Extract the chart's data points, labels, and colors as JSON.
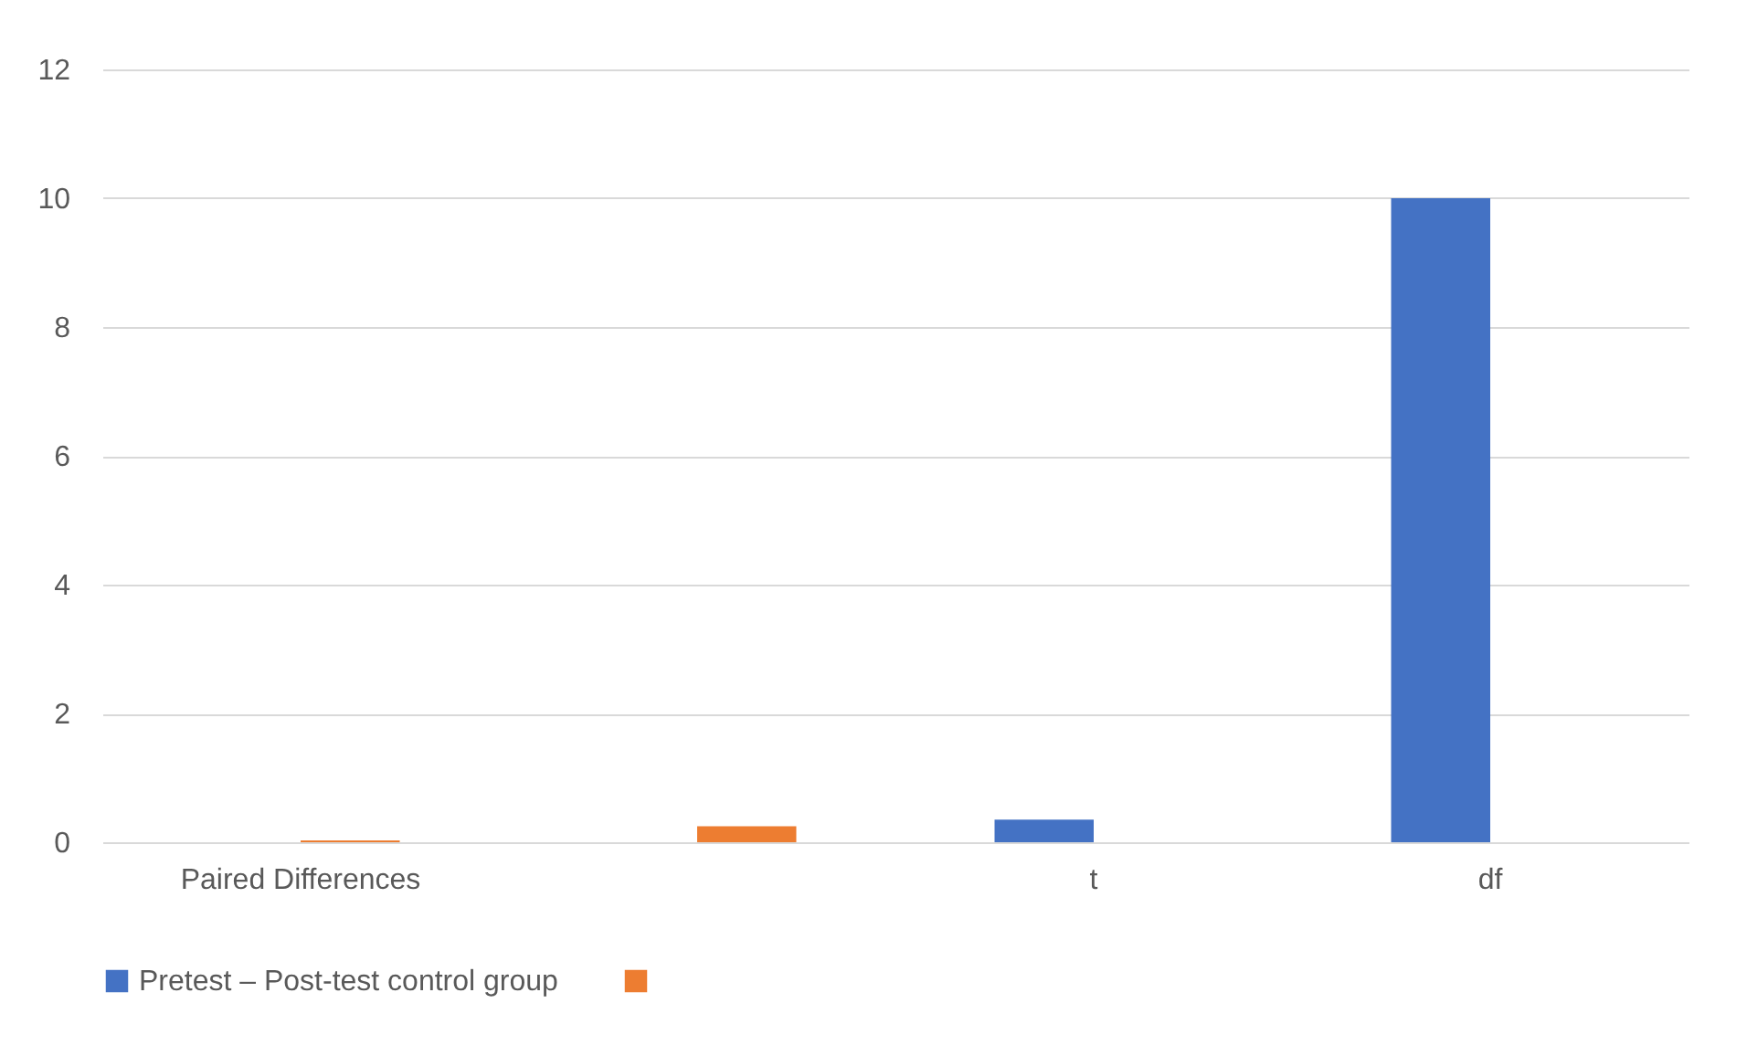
{
  "chart_data": {
    "type": "bar",
    "categories": [
      "Paired Differences",
      null,
      "t",
      "df"
    ],
    "series": [
      {
        "name": "Pretest – Post-test  control group",
        "color": "#4472c4",
        "values": [
          null,
          null,
          0.35,
          10
        ]
      },
      {
        "color": "#ed7d31",
        "values": [
          0.03,
          0.25,
          null,
          null
        ]
      }
    ],
    "ylim": [
      0,
      12
    ],
    "yticks": [
      0,
      2,
      4,
      6,
      8,
      10,
      12
    ],
    "grid": "y",
    "legend": "bottom"
  }
}
